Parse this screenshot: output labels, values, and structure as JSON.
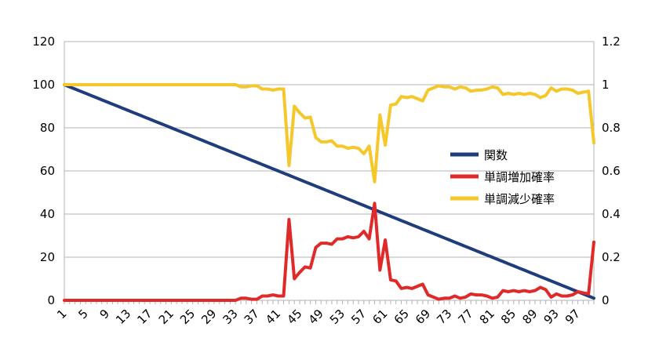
{
  "chart_data": {
    "type": "line",
    "title": "",
    "xlabel": "",
    "ylabel": "",
    "x_tick_labels": [
      "1",
      "5",
      "9",
      "13",
      "17",
      "21",
      "25",
      "29",
      "33",
      "37",
      "41",
      "45",
      "49",
      "53",
      "57",
      "61",
      "65",
      "69",
      "73",
      "77",
      "81",
      "85",
      "89",
      "93",
      "97"
    ],
    "x": [
      1,
      2,
      3,
      4,
      5,
      6,
      7,
      8,
      9,
      10,
      11,
      12,
      13,
      14,
      15,
      16,
      17,
      18,
      19,
      20,
      21,
      22,
      23,
      24,
      25,
      26,
      27,
      28,
      29,
      30,
      31,
      32,
      33,
      34,
      35,
      36,
      37,
      38,
      39,
      40,
      41,
      42,
      43,
      44,
      45,
      46,
      47,
      48,
      49,
      50,
      51,
      52,
      53,
      54,
      55,
      56,
      57,
      58,
      59,
      60,
      61,
      62,
      63,
      64,
      65,
      66,
      67,
      68,
      69,
      70,
      71,
      72,
      73,
      74,
      75,
      76,
      77,
      78,
      79,
      80,
      81,
      82,
      83,
      84,
      85,
      86,
      87,
      88,
      89,
      90,
      91,
      92,
      93,
      94,
      95,
      96,
      97,
      98,
      99,
      100
    ],
    "y_left": {
      "min": 0,
      "max": 120,
      "ticks": [
        "0",
        "20",
        "40",
        "60",
        "80",
        "100",
        "120"
      ]
    },
    "y_right": {
      "min": 0,
      "max": 1.2,
      "ticks": [
        "0",
        "0.2",
        "0.4",
        "0.6",
        "0.8",
        "1",
        "1.2"
      ]
    },
    "grid": "horizontal",
    "legend_position": "right",
    "series": [
      {
        "name": "関数",
        "axis": "left",
        "color": "#1f3d7a",
        "values": [
          100,
          99,
          98,
          97,
          96,
          95,
          94,
          93,
          92,
          91,
          90,
          89,
          88,
          87,
          86,
          85,
          84,
          83,
          82,
          81,
          80,
          79,
          78,
          77,
          76,
          75,
          74,
          73,
          72,
          71,
          70,
          69,
          68,
          67,
          66,
          65,
          64,
          63,
          62,
          61,
          60,
          59,
          58,
          57,
          56,
          55,
          54,
          53,
          52,
          51,
          50,
          49,
          48,
          47,
          46,
          45,
          44,
          43,
          42,
          41,
          40,
          39,
          38,
          37,
          36,
          35,
          34,
          33,
          32,
          31,
          30,
          29,
          28,
          27,
          26,
          25,
          24,
          23,
          22,
          21,
          20,
          19,
          18,
          17,
          16,
          15,
          14,
          13,
          12,
          11,
          10,
          9,
          8,
          7,
          6,
          5,
          4,
          3,
          2,
          1
        ]
      },
      {
        "name": "単調増加確率",
        "axis": "right",
        "color": "#e02a2a",
        "values": [
          0,
          0,
          0,
          0,
          0,
          0,
          0,
          0,
          0,
          0,
          0,
          0,
          0,
          0,
          0,
          0,
          0,
          0,
          0,
          0,
          0,
          0,
          0,
          0,
          0,
          0,
          0,
          0,
          0,
          0,
          0,
          0,
          0,
          0.01,
          0.01,
          0.005,
          0.005,
          0.02,
          0.02,
          0.025,
          0.02,
          0.02,
          0.375,
          0.1,
          0.13,
          0.155,
          0.15,
          0.245,
          0.265,
          0.265,
          0.26,
          0.285,
          0.285,
          0.295,
          0.29,
          0.295,
          0.32,
          0.285,
          0.45,
          0.14,
          0.28,
          0.095,
          0.09,
          0.055,
          0.06,
          0.055,
          0.065,
          0.075,
          0.025,
          0.015,
          0.005,
          0.01,
          0.01,
          0.02,
          0.01,
          0.015,
          0.03,
          0.025,
          0.025,
          0.02,
          0.01,
          0.015,
          0.045,
          0.04,
          0.045,
          0.04,
          0.045,
          0.04,
          0.045,
          0.06,
          0.05,
          0.015,
          0.03,
          0.02,
          0.02,
          0.025,
          0.04,
          0.035,
          0.03,
          0.27
        ]
      },
      {
        "name": "単調減少確率",
        "axis": "right",
        "color": "#f5c72a",
        "values": [
          1,
          1,
          1,
          1,
          1,
          1,
          1,
          1,
          1,
          1,
          1,
          1,
          1,
          1,
          1,
          1,
          1,
          1,
          1,
          1,
          1,
          1,
          1,
          1,
          1,
          1,
          1,
          1,
          1,
          1,
          1,
          1,
          1,
          0.99,
          0.99,
          0.995,
          0.995,
          0.98,
          0.98,
          0.975,
          0.98,
          0.98,
          0.625,
          0.9,
          0.87,
          0.845,
          0.85,
          0.755,
          0.735,
          0.735,
          0.74,
          0.715,
          0.715,
          0.705,
          0.71,
          0.705,
          0.68,
          0.715,
          0.55,
          0.86,
          0.72,
          0.905,
          0.91,
          0.945,
          0.94,
          0.945,
          0.935,
          0.925,
          0.975,
          0.985,
          0.995,
          0.99,
          0.99,
          0.98,
          0.99,
          0.985,
          0.97,
          0.975,
          0.975,
          0.98,
          0.99,
          0.985,
          0.955,
          0.96,
          0.955,
          0.96,
          0.955,
          0.96,
          0.955,
          0.94,
          0.95,
          0.985,
          0.97,
          0.98,
          0.98,
          0.975,
          0.96,
          0.965,
          0.97,
          0.73
        ]
      }
    ]
  }
}
